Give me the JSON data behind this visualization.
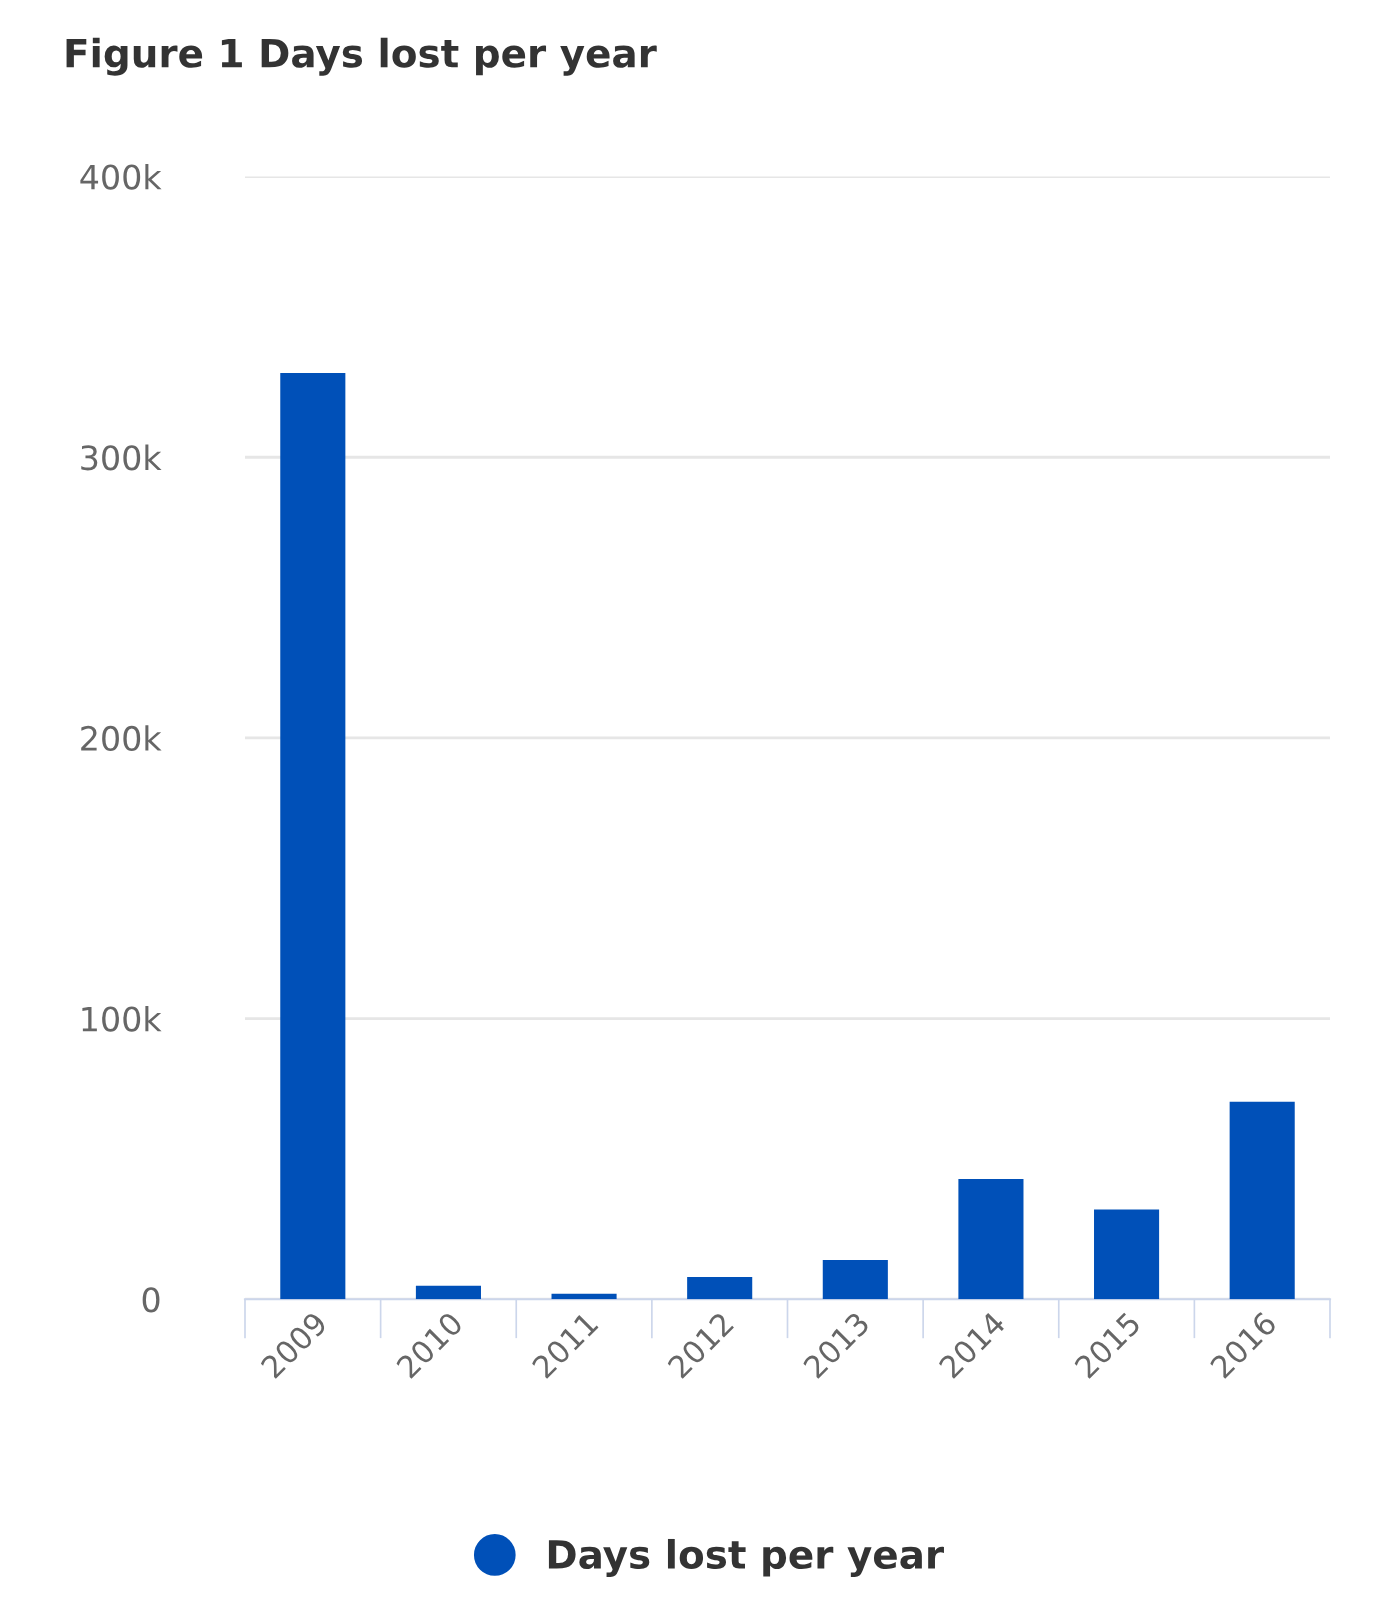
{
  "chart_data": {
    "type": "bar",
    "title": "Figure 1 Days lost per year",
    "categories": [
      "2009",
      "2010",
      "2011",
      "2012",
      "2013",
      "2014",
      "2015",
      "2016"
    ],
    "series": [
      {
        "name": "Days lost per year",
        "color": "#0050b8",
        "values": [
          330000,
          4800,
          2000,
          7900,
          14000,
          42800,
          32000,
          70400
        ]
      }
    ],
    "ylim": [
      0,
      400000
    ],
    "yticks": [
      {
        "value": 0,
        "label": "0"
      },
      {
        "value": 100000,
        "label": "100k"
      },
      {
        "value": 200000,
        "label": "200k"
      },
      {
        "value": 300000,
        "label": "300k"
      },
      {
        "value": 400000,
        "label": "400k"
      }
    ],
    "grid": "y",
    "legend": "bottom"
  }
}
